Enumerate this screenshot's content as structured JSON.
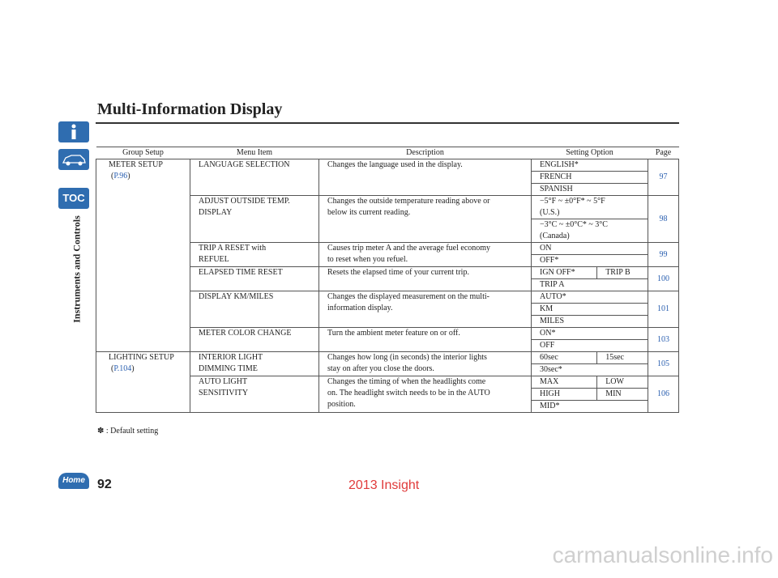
{
  "header": {
    "title": "Multi-Information Display"
  },
  "sidebar": {
    "toc": "TOC",
    "section": "Instruments and Controls",
    "home": "Home"
  },
  "table": {
    "headers": [
      "Group Setup",
      "Menu Item",
      "Description",
      "Setting Option",
      "Page"
    ],
    "groups": [
      {
        "name": "METER SETUP",
        "ref": "P.96",
        "items": [
          {
            "menu": [
              "LANGUAGE SELECTION"
            ],
            "description": [
              "Changes the language used in the display."
            ],
            "options": [
              [
                "ENGLISH*"
              ],
              [
                "FRENCH"
              ],
              [
                "SPANISH"
              ]
            ],
            "page": "97"
          },
          {
            "menu": [
              "ADJUST OUTSIDE TEMP.",
              "DISPLAY"
            ],
            "description": [
              "Changes the outside temperature reading above or",
              "below its current reading."
            ],
            "options": [
              [
                "−5°F ~ ±0°F* ~ 5°F\n(U.S.)"
              ],
              [
                "−3°C ~ ±0°C* ~ 3°C\n(Canada)"
              ]
            ],
            "page": "98"
          },
          {
            "menu": [
              "TRIP A RESET with",
              "REFUEL"
            ],
            "description": [
              "Causes trip meter A and the average fuel economy",
              "to reset when you refuel."
            ],
            "options": [
              [
                "ON"
              ],
              [
                "OFF*"
              ]
            ],
            "page": "99"
          },
          {
            "menu": [
              "ELAPSED TIME RESET"
            ],
            "description": [
              "Resets the elapsed time of your current trip."
            ],
            "options": [
              [
                "IGN OFF*",
                "TRIP B"
              ],
              [
                "TRIP A"
              ]
            ],
            "page": "100"
          },
          {
            "menu": [
              "DISPLAY KM/MILES"
            ],
            "description": [
              "Changes the displayed measurement on the multi-",
              "information display."
            ],
            "options": [
              [
                "AUTO*"
              ],
              [
                "KM"
              ],
              [
                "MILES"
              ]
            ],
            "page": "101"
          },
          {
            "menu": [
              "METER COLOR CHANGE"
            ],
            "description": [
              "Turn the ambient meter feature on or off."
            ],
            "options": [
              [
                "ON*"
              ],
              [
                "OFF"
              ]
            ],
            "page": "103"
          }
        ]
      },
      {
        "name": "LIGHTING SETUP",
        "ref": "P.104",
        "items": [
          {
            "menu": [
              "INTERIOR LIGHT",
              "DIMMING TIME"
            ],
            "description": [
              "Changes how long (in seconds) the interior lights",
              "stay on after you close the doors."
            ],
            "options": [
              [
                "60sec",
                "15sec"
              ],
              [
                "30sec*"
              ]
            ],
            "page": "105"
          },
          {
            "menu": [
              "AUTO LIGHT",
              "SENSITIVITY"
            ],
            "description": [
              "Changes the timing of when the headlights come",
              "on. The headlight switch needs to be in the AUTO",
              "position."
            ],
            "options": [
              [
                "MAX",
                "LOW"
              ],
              [
                "HIGH",
                "MIN"
              ],
              [
                "MID*"
              ]
            ],
            "page": "106"
          }
        ]
      }
    ]
  },
  "footnote": "✽ : Default setting",
  "footer": {
    "page_number": "92",
    "watermark": "2013 Insight",
    "site": "carmanualsonline.info"
  }
}
